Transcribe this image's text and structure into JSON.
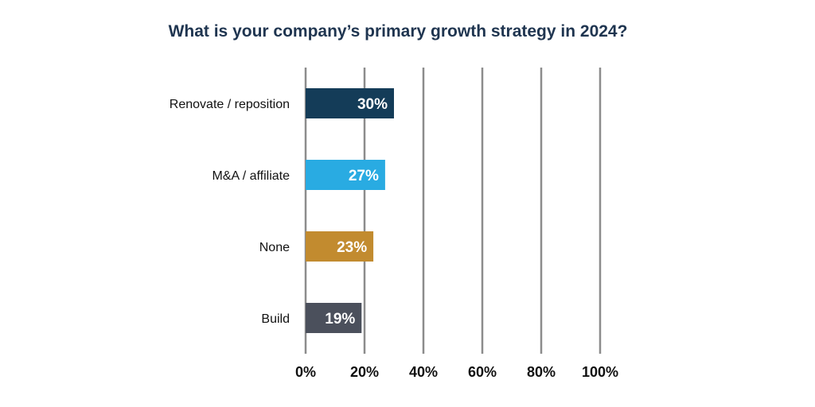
{
  "chart_data": {
    "type": "bar",
    "orientation": "horizontal",
    "title": "What is your company’s primary growth strategy in 2024?",
    "categories": [
      "Renovate / reposition",
      "M&A / affiliate",
      "None",
      "Build"
    ],
    "values": [
      30,
      27,
      23,
      19
    ],
    "data_labels": [
      "30%",
      "27%",
      "23%",
      "19%"
    ],
    "colors": [
      "#143c58",
      "#29abe2",
      "#c28b2f",
      "#4b505c"
    ],
    "xlim": [
      0,
      100
    ],
    "xticks": [
      0,
      20,
      40,
      60,
      80,
      100
    ],
    "xtick_labels": [
      "0%",
      "20%",
      "40%",
      "60%",
      "80%",
      "100%"
    ],
    "xlabel": "",
    "ylabel": "",
    "grid": "vertical",
    "grid_color": "#8c8c8c",
    "legend": "none"
  }
}
